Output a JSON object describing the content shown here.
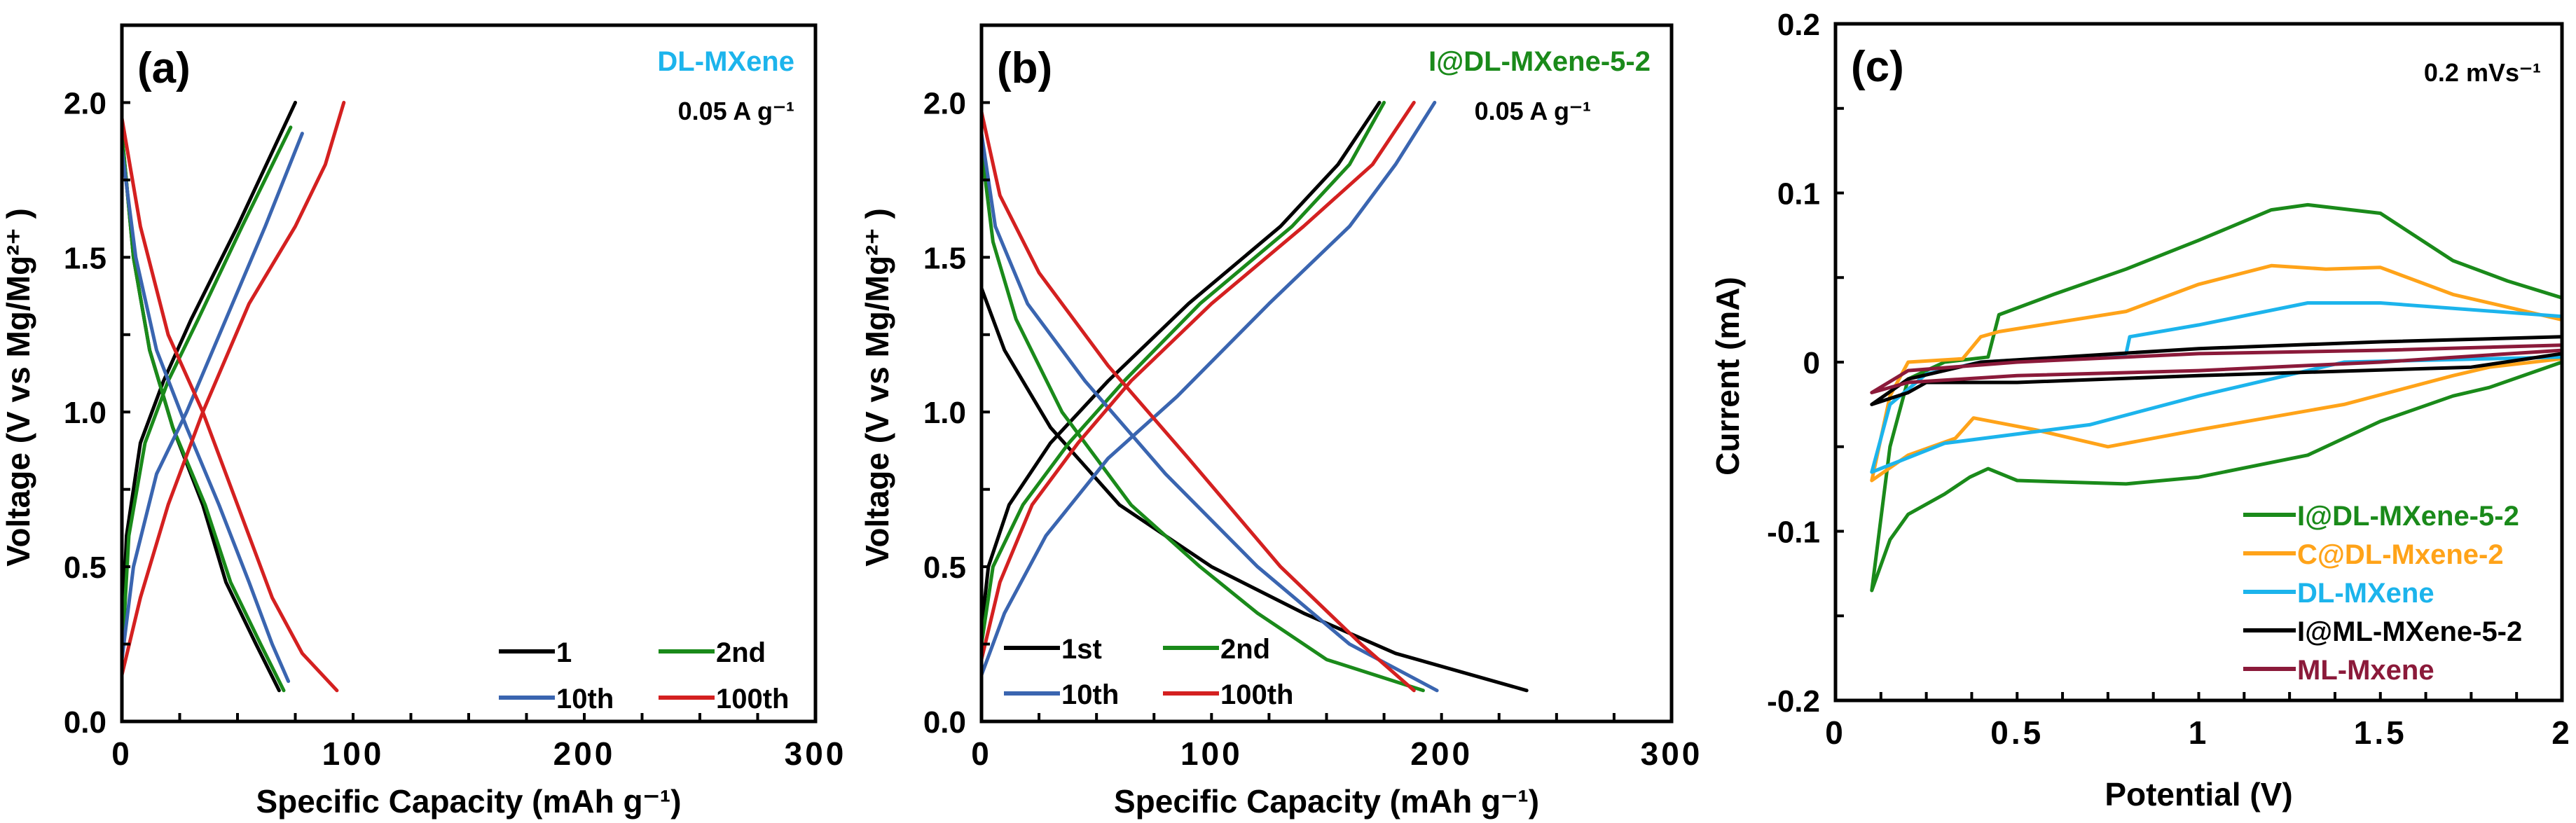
{
  "chart_data": [
    {
      "type": "line",
      "panel_label": "(a)",
      "title": "DL-MXene",
      "title_color": "#1cb4ec",
      "annotation": "0.05 A g⁻¹",
      "xlabel": "Specific Capacity (mAh g⁻¹)",
      "ylabel": "Voltage (V vs Mg/Mg²⁺ )",
      "xlim": [
        0,
        300
      ],
      "ylim": [
        0,
        2.25
      ],
      "xticks": [
        0,
        100,
        200,
        300
      ],
      "xtick_labels": [
        "0",
        "100",
        "200",
        "300"
      ],
      "yticks": [
        0,
        0.5,
        1.0,
        1.5,
        2.0
      ],
      "ytick_labels": [
        "0.0",
        "0.5",
        "1.0",
        "1.5",
        "2.0"
      ],
      "legend": "bottom-right",
      "series": [
        {
          "name": "1",
          "color": "#000000",
          "charge": [
            [
              0,
              0.25
            ],
            [
              2,
              0.6
            ],
            [
              8,
              0.9
            ],
            [
              18,
              1.1
            ],
            [
              30,
              1.3
            ],
            [
              50,
              1.6
            ],
            [
              75,
              2.0
            ]
          ],
          "discharge": [
            [
              0,
              1.9
            ],
            [
              5,
              1.5
            ],
            [
              12,
              1.2
            ],
            [
              22,
              0.95
            ],
            [
              35,
              0.7
            ],
            [
              45,
              0.45
            ],
            [
              58,
              0.25
            ],
            [
              68,
              0.1
            ]
          ]
        },
        {
          "name": "2nd",
          "color": "#1a8a1a",
          "charge": [
            [
              0,
              0.2
            ],
            [
              3,
              0.6
            ],
            [
              10,
              0.9
            ],
            [
              20,
              1.1
            ],
            [
              33,
              1.3
            ],
            [
              52,
              1.6
            ],
            [
              73,
              1.92
            ]
          ],
          "discharge": [
            [
              0,
              1.9
            ],
            [
              5,
              1.5
            ],
            [
              12,
              1.2
            ],
            [
              22,
              0.95
            ],
            [
              36,
              0.7
            ],
            [
              47,
              0.45
            ],
            [
              60,
              0.25
            ],
            [
              70,
              0.1
            ]
          ]
        },
        {
          "name": "10th",
          "color": "#3a65b0",
          "charge": [
            [
              0,
              0.2
            ],
            [
              5,
              0.5
            ],
            [
              15,
              0.8
            ],
            [
              28,
              1.0
            ],
            [
              45,
              1.3
            ],
            [
              62,
              1.6
            ],
            [
              78,
              1.9
            ]
          ],
          "discharge": [
            [
              0,
              1.85
            ],
            [
              6,
              1.5
            ],
            [
              15,
              1.2
            ],
            [
              28,
              0.95
            ],
            [
              42,
              0.7
            ],
            [
              55,
              0.45
            ],
            [
              65,
              0.25
            ],
            [
              72,
              0.13
            ]
          ]
        },
        {
          "name": "100th",
          "color": "#d42020",
          "charge": [
            [
              0,
              0.15
            ],
            [
              8,
              0.4
            ],
            [
              20,
              0.7
            ],
            [
              35,
              1.0
            ],
            [
              55,
              1.35
            ],
            [
              75,
              1.6
            ],
            [
              88,
              1.8
            ],
            [
              96,
              2.0
            ]
          ],
          "discharge": [
            [
              0,
              1.95
            ],
            [
              8,
              1.6
            ],
            [
              20,
              1.25
            ],
            [
              35,
              1.0
            ],
            [
              50,
              0.7
            ],
            [
              65,
              0.4
            ],
            [
              78,
              0.22
            ],
            [
              93,
              0.1
            ]
          ]
        }
      ]
    },
    {
      "type": "line",
      "panel_label": "(b)",
      "title": "I@DL-MXene-5-2",
      "title_color": "#1a8a1a",
      "annotation": "0.05 A g⁻¹",
      "xlabel": "Specific Capacity (mAh g⁻¹)",
      "ylabel": "Voltage (V vs Mg/Mg²⁺ )",
      "xlim": [
        0,
        300
      ],
      "ylim": [
        0,
        2.25
      ],
      "xticks": [
        0,
        100,
        200,
        300
      ],
      "xtick_labels": [
        "0",
        "100",
        "200",
        "300"
      ],
      "yticks": [
        0,
        0.5,
        1.0,
        1.5,
        2.0
      ],
      "ytick_labels": [
        "0.0",
        "0.5",
        "1.0",
        "1.5",
        "2.0"
      ],
      "legend": "bottom-left",
      "series": [
        {
          "name": "1st",
          "color": "#000000",
          "charge": [
            [
              0,
              0.3
            ],
            [
              3,
              0.5
            ],
            [
              12,
              0.7
            ],
            [
              30,
              0.9
            ],
            [
              55,
              1.1
            ],
            [
              90,
              1.35
            ],
            [
              130,
              1.6
            ],
            [
              155,
              1.8
            ],
            [
              173,
              2.0
            ]
          ],
          "discharge": [
            [
              0,
              1.4
            ],
            [
              10,
              1.2
            ],
            [
              30,
              0.95
            ],
            [
              60,
              0.7
            ],
            [
              100,
              0.5
            ],
            [
              140,
              0.35
            ],
            [
              180,
              0.22
            ],
            [
              237,
              0.1
            ]
          ]
        },
        {
          "name": "2nd",
          "color": "#1a8a1a",
          "charge": [
            [
              0,
              0.25
            ],
            [
              5,
              0.5
            ],
            [
              18,
              0.7
            ],
            [
              38,
              0.9
            ],
            [
              62,
              1.1
            ],
            [
              95,
              1.35
            ],
            [
              135,
              1.6
            ],
            [
              160,
              1.8
            ],
            [
              175,
              2.0
            ]
          ],
          "discharge": [
            [
              0,
              1.85
            ],
            [
              5,
              1.55
            ],
            [
              15,
              1.3
            ],
            [
              35,
              1.0
            ],
            [
              65,
              0.7
            ],
            [
              95,
              0.5
            ],
            [
              120,
              0.35
            ],
            [
              150,
              0.2
            ],
            [
              192,
              0.1
            ]
          ]
        },
        {
          "name": "10th",
          "color": "#3a65b0",
          "charge": [
            [
              0,
              0.15
            ],
            [
              10,
              0.35
            ],
            [
              28,
              0.6
            ],
            [
              55,
              0.85
            ],
            [
              85,
              1.05
            ],
            [
              125,
              1.35
            ],
            [
              160,
              1.6
            ],
            [
              180,
              1.8
            ],
            [
              197,
              2.0
            ]
          ],
          "discharge": [
            [
              0,
              1.9
            ],
            [
              6,
              1.6
            ],
            [
              20,
              1.35
            ],
            [
              45,
              1.1
            ],
            [
              80,
              0.8
            ],
            [
              120,
              0.5
            ],
            [
              160,
              0.25
            ],
            [
              198,
              0.1
            ]
          ]
        },
        {
          "name": "100th",
          "color": "#d42020",
          "charge": [
            [
              0,
              0.2
            ],
            [
              8,
              0.45
            ],
            [
              22,
              0.7
            ],
            [
              42,
              0.9
            ],
            [
              65,
              1.1
            ],
            [
              100,
              1.35
            ],
            [
              140,
              1.6
            ],
            [
              170,
              1.8
            ],
            [
              188,
              2.0
            ]
          ],
          "discharge": [
            [
              0,
              1.97
            ],
            [
              8,
              1.7
            ],
            [
              25,
              1.45
            ],
            [
              55,
              1.15
            ],
            [
              90,
              0.85
            ],
            [
              130,
              0.5
            ],
            [
              165,
              0.25
            ],
            [
              188,
              0.1
            ]
          ]
        }
      ]
    },
    {
      "type": "line",
      "panel_label": "(c)",
      "title": "",
      "annotation": "0.2 mVs⁻¹",
      "xlabel": "Potential (V)",
      "ylabel": "Current (mA)",
      "xlim": [
        0,
        2
      ],
      "ylim": [
        -0.2,
        0.2
      ],
      "xticks": [
        0,
        0.5,
        1,
        1.5,
        2
      ],
      "xtick_labels": [
        "0",
        "0.5",
        "1",
        "1.5",
        "2"
      ],
      "yticks": [
        -0.2,
        -0.1,
        0,
        0.1,
        0.2
      ],
      "ytick_labels": [
        "-0.2",
        "-0.1",
        "0",
        "0.1",
        "0.2"
      ],
      "legend": "bottom-right",
      "series": [
        {
          "name": "I@DL-MXene-5-2",
          "color": "#1a8a1a",
          "loop": [
            [
              0.1,
              -0.135
            ],
            [
              0.15,
              -0.05
            ],
            [
              0.2,
              -0.01
            ],
            [
              0.3,
              0.0
            ],
            [
              0.42,
              0.003
            ],
            [
              0.45,
              0.028
            ],
            [
              0.6,
              0.04
            ],
            [
              0.8,
              0.055
            ],
            [
              1.0,
              0.072
            ],
            [
              1.2,
              0.09
            ],
            [
              1.3,
              0.093
            ],
            [
              1.5,
              0.088
            ],
            [
              1.7,
              0.06
            ],
            [
              1.85,
              0.048
            ],
            [
              2.0,
              0.038
            ],
            [
              2.0,
              0.0
            ],
            [
              1.8,
              -0.015
            ],
            [
              1.7,
              -0.02
            ],
            [
              1.5,
              -0.035
            ],
            [
              1.3,
              -0.055
            ],
            [
              1.0,
              -0.068
            ],
            [
              0.8,
              -0.072
            ],
            [
              0.5,
              -0.07
            ],
            [
              0.42,
              -0.063
            ],
            [
              0.37,
              -0.068
            ],
            [
              0.3,
              -0.078
            ],
            [
              0.2,
              -0.09
            ],
            [
              0.15,
              -0.105
            ],
            [
              0.1,
              -0.135
            ]
          ]
        },
        {
          "name": "C@DL-Mxene-2",
          "color": "#ffa319",
          "loop": [
            [
              0.1,
              -0.07
            ],
            [
              0.15,
              -0.02
            ],
            [
              0.2,
              0.0
            ],
            [
              0.35,
              0.002
            ],
            [
              0.4,
              0.015
            ],
            [
              0.45,
              0.018
            ],
            [
              0.8,
              0.03
            ],
            [
              1.0,
              0.046
            ],
            [
              1.2,
              0.057
            ],
            [
              1.35,
              0.055
            ],
            [
              1.5,
              0.056
            ],
            [
              1.7,
              0.04
            ],
            [
              2.0,
              0.025
            ],
            [
              2.0,
              0.002
            ],
            [
              1.8,
              -0.003
            ],
            [
              1.7,
              -0.008
            ],
            [
              1.4,
              -0.025
            ],
            [
              1.0,
              -0.04
            ],
            [
              0.75,
              -0.05
            ],
            [
              0.55,
              -0.04
            ],
            [
              0.38,
              -0.033
            ],
            [
              0.33,
              -0.045
            ],
            [
              0.2,
              -0.055
            ],
            [
              0.1,
              -0.07
            ]
          ]
        },
        {
          "name": "DL-MXene",
          "color": "#1cb4ec",
          "loop": [
            [
              0.1,
              -0.065
            ],
            [
              0.15,
              -0.025
            ],
            [
              0.25,
              -0.007
            ],
            [
              0.4,
              0.0
            ],
            [
              0.8,
              0.005
            ],
            [
              0.81,
              0.015
            ],
            [
              1.0,
              0.022
            ],
            [
              1.3,
              0.035
            ],
            [
              1.5,
              0.035
            ],
            [
              2.0,
              0.027
            ],
            [
              2.0,
              0.003
            ],
            [
              1.4,
              0.0
            ],
            [
              1.0,
              -0.02
            ],
            [
              0.7,
              -0.037
            ],
            [
              0.3,
              -0.048
            ],
            [
              0.1,
              -0.065
            ]
          ]
        },
        {
          "name": "I@ML-MXene-5-2",
          "color": "#000000",
          "loop": [
            [
              0.1,
              -0.025
            ],
            [
              0.2,
              -0.01
            ],
            [
              0.4,
              0.0
            ],
            [
              1.0,
              0.008
            ],
            [
              1.5,
              0.012
            ],
            [
              2.0,
              0.015
            ],
            [
              2.0,
              0.005
            ],
            [
              1.75,
              -0.003
            ],
            [
              1.0,
              -0.008
            ],
            [
              0.5,
              -0.012
            ],
            [
              0.25,
              -0.012
            ],
            [
              0.2,
              -0.018
            ],
            [
              0.1,
              -0.025
            ]
          ]
        },
        {
          "name": "ML-Mxene",
          "color": "#8b1a3a",
          "loop": [
            [
              0.1,
              -0.018
            ],
            [
              0.2,
              -0.005
            ],
            [
              0.5,
              0.0
            ],
            [
              1.0,
              0.005
            ],
            [
              1.5,
              0.007
            ],
            [
              2.0,
              0.01
            ],
            [
              2.0,
              0.007
            ],
            [
              1.5,
              0.0
            ],
            [
              1.0,
              -0.005
            ],
            [
              0.5,
              -0.008
            ],
            [
              0.2,
              -0.012
            ],
            [
              0.1,
              -0.018
            ]
          ]
        }
      ]
    }
  ]
}
